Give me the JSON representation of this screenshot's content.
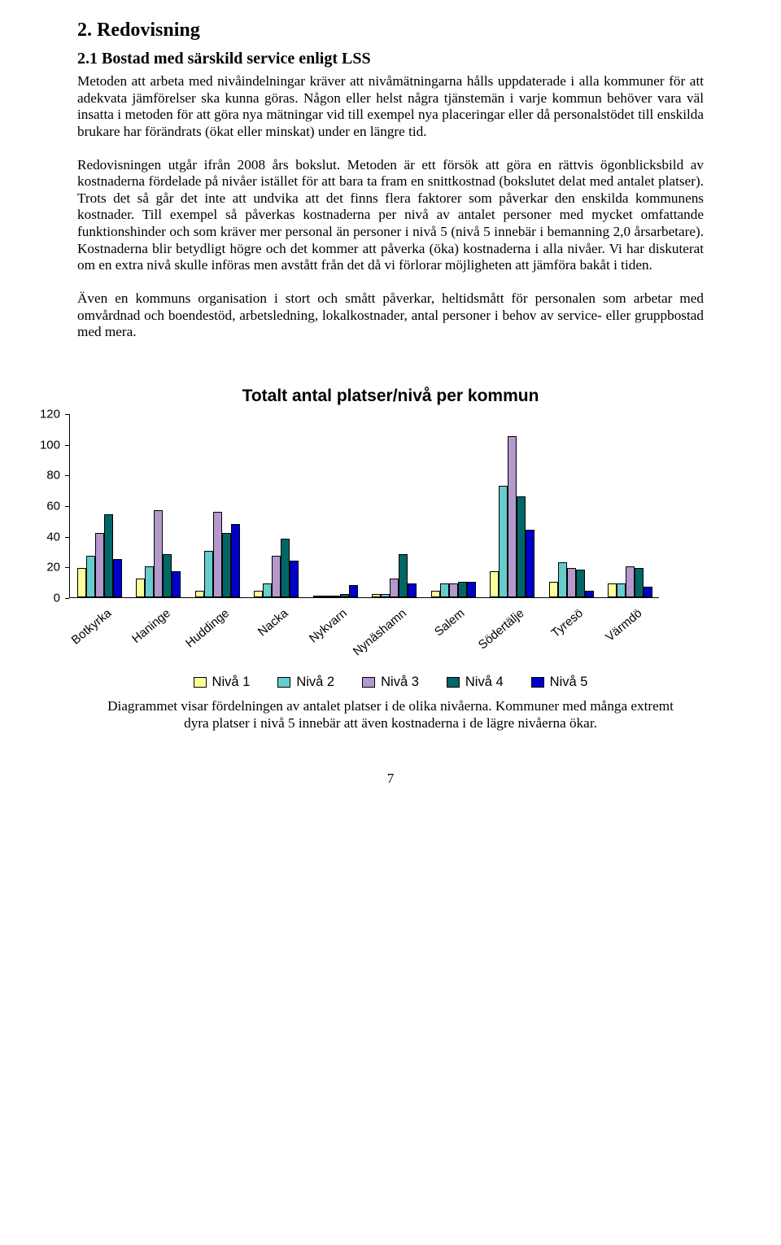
{
  "heading": "2. Redovisning",
  "subheading": "2.1 Bostad med särskild service enligt LSS",
  "para1": "Metoden att arbeta med nivåindelningar kräver att nivåmätningarna hålls uppdaterade i alla kommuner för att adekvata jämförelser ska kunna göras. Någon eller helst några tjänstemän i varje kommun behöver vara väl insatta i metoden för att göra nya mätningar vid till exempel nya placeringar eller då personalstödet till enskilda brukare har förändrats (ökat eller minskat) under en längre tid.",
  "para2": "Redovisningen utgår ifrån 2008 års bokslut. Metoden är ett försök att göra en rättvis ögonblicksbild av kostnaderna fördelade på nivåer istället för att bara ta fram en snittkostnad (bokslutet delat med antalet platser). Trots det så går det inte att undvika att det finns flera faktorer som påverkar den enskilda kommunens kostnader. Till exempel så påverkas kostnaderna per nivå av antalet personer med mycket omfattande funktionshinder och som kräver mer personal än personer i nivå 5 (nivå 5 innebär i bemanning 2,0 årsarbetare). Kostnaderna blir betydligt högre och det kommer att påverka (öka) kostnaderna i alla nivåer. Vi har diskuterat om en extra nivå skulle införas men avstått från det då vi förlorar möjligheten att jämföra bakåt i tiden.",
  "para3": "Även en kommuns organisation i stort och smått påverkar, heltidsmått för personalen som arbetar med omvårdnad och boendestöd, arbetsledning, lokalkostnader, antal personer i behov av service- eller gruppbostad med mera.",
  "chart": {
    "title": "Totalt antal platser/nivå per kommun",
    "ylim": [
      0,
      120
    ],
    "yticks": [
      0,
      20,
      40,
      60,
      80,
      100,
      120
    ],
    "ytick_step": 20,
    "categories": [
      "Botkyrka",
      "Haninge",
      "Huddinge",
      "Nacka",
      "Nykvarn",
      "Nynäshamn",
      "Salem",
      "Södertälje",
      "Tyresö",
      "Värmdö"
    ],
    "series": [
      {
        "name": "Nivå 1",
        "color": "#ffff99",
        "values": [
          19,
          12,
          4,
          4,
          1,
          2,
          4,
          17,
          10,
          9
        ]
      },
      {
        "name": "Nivå 2",
        "color": "#66cccc",
        "values": [
          27,
          20,
          30,
          9,
          1,
          2,
          9,
          73,
          23,
          9
        ]
      },
      {
        "name": "Nivå 3",
        "color": "#b399cc",
        "values": [
          42,
          57,
          56,
          27,
          1,
          12,
          9,
          105,
          19,
          20
        ]
      },
      {
        "name": "Nivå 4",
        "color": "#006666",
        "values": [
          54,
          28,
          42,
          38,
          2,
          28,
          10,
          66,
          18,
          19
        ]
      },
      {
        "name": "Nivå 5",
        "color": "#0000cc",
        "values": [
          25,
          17,
          48,
          24,
          8,
          9,
          10,
          44,
          4,
          7
        ]
      }
    ],
    "legend_labels": [
      "Nivå 1",
      "Nivå 2",
      "Nivå 3",
      "Nivå 4",
      "Nivå 5"
    ],
    "background_color": "#ffffff"
  },
  "caption": "Diagrammet visar fördelningen av antalet platser i de olika nivåerna. Kommuner med många extremt dyra platser i nivå 5 innebär att även kostnaderna i de lägre nivåerna ökar.",
  "page_number": "7"
}
